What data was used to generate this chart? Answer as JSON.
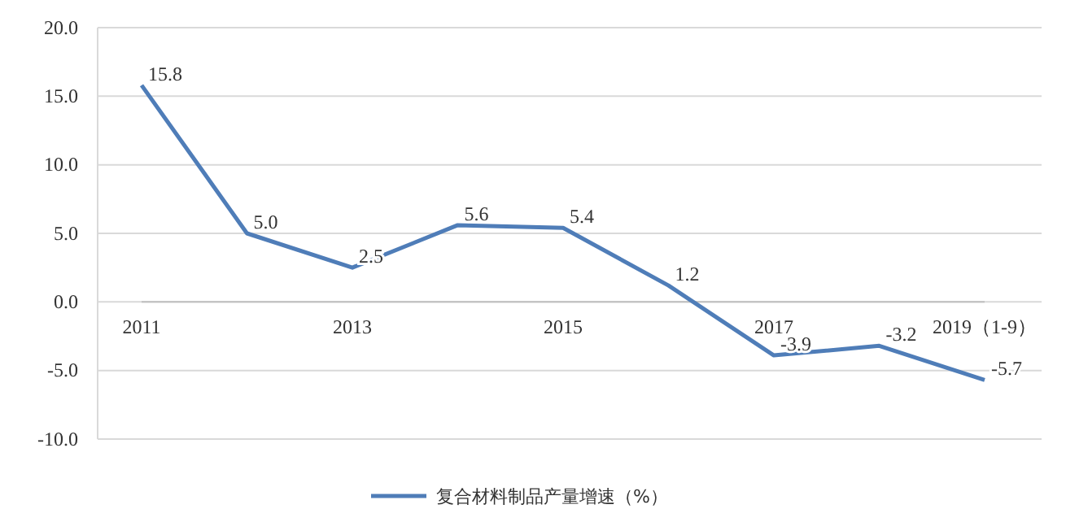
{
  "chart_data": {
    "type": "line",
    "categories": [
      "2011",
      null,
      "2013",
      null,
      "2015",
      null,
      "2017",
      null,
      "2019（1-9）"
    ],
    "series": [
      {
        "name": "复合材料制品产量增速（%）",
        "color": "#4f7db8",
        "values": [
          15.8,
          5.0,
          2.5,
          5.6,
          5.4,
          1.2,
          -3.9,
          -3.2,
          -5.7
        ],
        "value_labels": [
          "15.8",
          "5.0",
          "2.5",
          "5.6",
          "5.4",
          "1.2",
          "-3.9",
          "-3.2",
          "-5.7"
        ]
      }
    ],
    "ylim": [
      -10,
      20
    ],
    "yticks": [
      {
        "value": -10,
        "label": "-10.0"
      },
      {
        "value": -5,
        "label": "-5.0"
      },
      {
        "value": 0,
        "label": "0.0"
      },
      {
        "value": 5,
        "label": "5.0"
      },
      {
        "value": 10,
        "label": "10.0"
      },
      {
        "value": 15,
        "label": "15.0"
      },
      {
        "value": 20,
        "label": "20.0"
      }
    ],
    "grid": "y",
    "legend": "bottom",
    "marker": "none",
    "line_style": "solid"
  }
}
